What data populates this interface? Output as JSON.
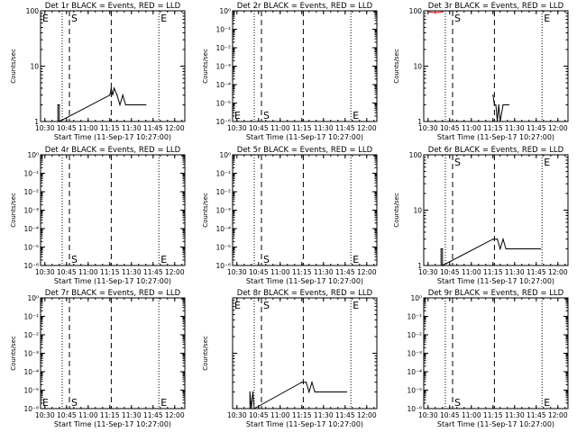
{
  "figure": {
    "background": "#ffffff",
    "axis_color": "#000000",
    "lld_color": "#ff0000"
  },
  "chart_data": [
    {
      "type": "line",
      "title": "Det 1r  BLACK = Events, RED = LLD",
      "xlabel": "Start Time (11-Sep-17 10:27:00)",
      "ylabel": "Counts/sec",
      "ylim": [
        1,
        100
      ],
      "yscale": "log",
      "ytick_labels": [
        "1",
        "10",
        "100"
      ],
      "xtick_labels": [
        "10:30",
        "10:45",
        "11:00",
        "11:15",
        "11:30",
        "11:45",
        "12:00"
      ],
      "dotted_lines": [
        "10:42",
        "11:49"
      ],
      "dashed_lines": [
        "10:47",
        "11:16"
      ],
      "markers": [
        {
          "text": "S",
          "at": "10:47",
          "pos": "top"
        },
        {
          "text": "E",
          "at": "11:49",
          "pos": "top"
        },
        {
          "text": "E",
          "at": "10:27",
          "pos": "top"
        }
      ],
      "series": [
        {
          "color": "#000000",
          "x": [
            "10:39",
            "10:39",
            "10:40",
            "10:40",
            "11:15",
            "11:16",
            "11:17",
            "11:18",
            "11:20",
            "11:22",
            "11:24",
            "11:26",
            "11:28",
            "11:30",
            "11:32",
            "11:34",
            "11:36",
            "11:38",
            "11:40"
          ],
          "y": [
            1,
            2,
            2,
            1,
            3,
            4,
            3,
            4,
            3,
            2,
            3,
            2,
            2,
            2,
            2,
            2,
            2,
            2,
            2
          ]
        }
      ]
    },
    {
      "type": "line",
      "title": "Det 2r  BLACK = Events, RED = LLD",
      "xlabel": "Start Time (11-Sep-17 10:27:00)",
      "ylabel": "Counts/sec",
      "ylim": [
        1e-06,
        1
      ],
      "yscale": "log",
      "ytick_labels": [
        "10⁻⁶",
        "10⁻⁵",
        "10⁻⁴",
        "10⁻³",
        "10⁻²",
        "10⁻¹",
        "10⁰"
      ],
      "xtick_labels": [
        "10:30",
        "10:45",
        "11:00",
        "11:15",
        "11:30",
        "11:45",
        "12:00"
      ],
      "dotted_lines": [
        "10:42",
        "11:49"
      ],
      "dashed_lines": [
        "10:47",
        "11:16"
      ],
      "markers": [
        {
          "text": "S",
          "at": "10:47",
          "pos": "bottom"
        },
        {
          "text": "E",
          "at": "11:49",
          "pos": "bottom"
        },
        {
          "text": "E",
          "at": "10:27",
          "pos": "bottom"
        }
      ],
      "series": []
    },
    {
      "type": "line",
      "title": "Det 3r  BLACK = Events, RED = LLD",
      "xlabel": "Start Time (11-Sep-17 10:27:00)",
      "ylabel": "Counts/sec",
      "ylim": [
        1,
        100
      ],
      "yscale": "log",
      "ytick_labels": [
        "1",
        "10",
        "100"
      ],
      "xtick_labels": [
        "10:30",
        "10:45",
        "11:00",
        "11:15",
        "11:30",
        "11:45",
        "12:00"
      ],
      "dotted_lines": [
        "10:42",
        "11:49"
      ],
      "dashed_lines": [
        "10:47",
        "11:16"
      ],
      "markers": [
        {
          "text": "S",
          "at": "10:47",
          "pos": "top"
        },
        {
          "text": "E",
          "at": "11:49",
          "pos": "top"
        }
      ],
      "series": [
        {
          "color": "#000000",
          "x": [
            "11:15",
            "11:16",
            "11:17",
            "11:18",
            "11:19",
            "11:20",
            "11:22",
            "11:24",
            "11:26"
          ],
          "y": [
            3,
            2,
            2,
            1,
            2,
            1,
            2,
            2,
            2
          ]
        },
        {
          "color": "#ff0000",
          "x": [
            "10:31",
            "10:35",
            "10:40"
          ],
          "y": [
            95,
            92,
            96
          ]
        }
      ]
    },
    {
      "type": "line",
      "title": "Det 4r  BLACK = Events, RED = LLD",
      "xlabel": "Start Time (11-Sep-17 10:27:00)",
      "ylabel": "Counts/sec",
      "ylim": [
        1e-06,
        1
      ],
      "yscale": "log",
      "ytick_labels": [
        "10⁻⁶",
        "10⁻⁵",
        "10⁻⁴",
        "10⁻³",
        "10⁻²",
        "10⁻¹",
        "10⁰"
      ],
      "xtick_labels": [
        "10:30",
        "10:45",
        "11:00",
        "11:15",
        "11:30",
        "11:45",
        "12:00"
      ],
      "dotted_lines": [
        "10:42",
        "11:49"
      ],
      "dashed_lines": [
        "10:47",
        "11:16"
      ],
      "markers": [
        {
          "text": "S",
          "at": "10:47",
          "pos": "bottom"
        },
        {
          "text": "E",
          "at": "11:49",
          "pos": "bottom"
        }
      ],
      "series": []
    },
    {
      "type": "line",
      "title": "Det 5r  BLACK = Events, RED = LLD",
      "xlabel": "Start Time (11-Sep-17 10:27:00)",
      "ylabel": "Counts/sec",
      "ylim": [
        1e-06,
        1
      ],
      "yscale": "log",
      "ytick_labels": [
        "10⁻⁶",
        "10⁻⁵",
        "10⁻⁴",
        "10⁻³",
        "10⁻²",
        "10⁻¹",
        "10⁰"
      ],
      "xtick_labels": [
        "10:30",
        "10:45",
        "11:00",
        "11:15",
        "11:30",
        "11:45",
        "12:00"
      ],
      "dotted_lines": [
        "10:42",
        "11:49"
      ],
      "dashed_lines": [
        "10:47",
        "11:16"
      ],
      "markers": [
        {
          "text": "S",
          "at": "10:47",
          "pos": "bottom"
        },
        {
          "text": "E",
          "at": "11:49",
          "pos": "bottom"
        }
      ],
      "series": []
    },
    {
      "type": "line",
      "title": "Det 6r  BLACK = Events, RED = LLD",
      "xlabel": "Start Time (11-Sep-17 10:27:00)",
      "ylabel": "Counts/sec",
      "ylim": [
        1,
        100
      ],
      "yscale": "log",
      "ytick_labels": [
        "1",
        "10",
        "100"
      ],
      "xtick_labels": [
        "10:30",
        "10:45",
        "11:00",
        "11:15",
        "11:30",
        "11:45",
        "12:00"
      ],
      "dotted_lines": [
        "10:42",
        "11:49"
      ],
      "dashed_lines": [
        "10:47",
        "11:16"
      ],
      "markers": [
        {
          "text": "S",
          "at": "10:47",
          "pos": "top"
        },
        {
          "text": "E",
          "at": "11:49",
          "pos": "top"
        }
      ],
      "series": [
        {
          "color": "#000000",
          "x": [
            "10:39",
            "10:39",
            "10:40",
            "10:40",
            "11:15",
            "11:16",
            "11:18",
            "11:20",
            "11:22",
            "11:24",
            "11:26",
            "11:28",
            "11:30",
            "11:32",
            "11:34",
            "11:36",
            "11:38",
            "11:40",
            "11:42",
            "11:44",
            "11:46",
            "11:48"
          ],
          "y": [
            1,
            2,
            2,
            1,
            3,
            3,
            3,
            2,
            3,
            2,
            2,
            2,
            2,
            2,
            2,
            2,
            2,
            2,
            2,
            2,
            2,
            2
          ]
        }
      ]
    },
    {
      "type": "line",
      "title": "Det 7r  BLACK = Events, RED = LLD",
      "xlabel": "Start Time (11-Sep-17 10:27:00)",
      "ylabel": "Counts/sec",
      "ylim": [
        1e-06,
        1
      ],
      "yscale": "log",
      "ytick_labels": [
        "10⁻⁶",
        "10⁻⁵",
        "10⁻⁴",
        "10⁻³",
        "10⁻²",
        "10⁻¹",
        "10⁰"
      ],
      "xtick_labels": [
        "10:30",
        "10:45",
        "11:00",
        "11:15",
        "11:30",
        "11:45",
        "12:00"
      ],
      "dotted_lines": [
        "10:42",
        "11:49"
      ],
      "dashed_lines": [
        "10:47",
        "11:16"
      ],
      "markers": [
        {
          "text": "S",
          "at": "10:47",
          "pos": "bottom"
        },
        {
          "text": "E",
          "at": "11:49",
          "pos": "bottom"
        },
        {
          "text": "E",
          "at": "10:27",
          "pos": "bottom"
        }
      ],
      "series": []
    },
    {
      "type": "line",
      "title": "Det 8r  BLACK = Events, RED = LLD",
      "xlabel": "Start Time (11-Sep-17 10:27:00)",
      "ylabel": "Counts/sec",
      "ylim": [
        1,
        100
      ],
      "yscale": "log",
      "ytick_labels": [],
      "xtick_labels": [
        "10:30",
        "10:45",
        "11:00",
        "11:15",
        "11:30",
        "11:45",
        "12:00"
      ],
      "dotted_lines": [
        "10:42",
        "11:49"
      ],
      "dashed_lines": [
        "10:47",
        "11:16"
      ],
      "markers": [
        {
          "text": "S",
          "at": "10:47",
          "pos": "top"
        },
        {
          "text": "E",
          "at": "11:49",
          "pos": "top"
        },
        {
          "text": "E",
          "at": "10:27",
          "pos": "top"
        }
      ],
      "series": [
        {
          "color": "#000000",
          "x": [
            "10:39",
            "10:39",
            "10:40",
            "10:41",
            "10:42",
            "10:42",
            "11:15",
            "11:16",
            "11:18",
            "11:20",
            "11:22",
            "11:24",
            "11:26",
            "11:28",
            "11:30",
            "11:32",
            "11:34",
            "11:36",
            "11:38",
            "11:40",
            "11:42",
            "11:44",
            "11:46"
          ],
          "y": [
            1,
            2,
            1,
            2,
            1,
            1,
            3,
            3,
            3,
            2,
            3,
            2,
            2,
            2,
            2,
            2,
            2,
            2,
            2,
            2,
            2,
            2,
            2
          ]
        }
      ]
    },
    {
      "type": "line",
      "title": "Det 9r  BLACK = Events, RED = LLD",
      "xlabel": "Start Time (11-Sep-17 10:27:00)",
      "ylabel": "",
      "ylim": [
        1e-06,
        1
      ],
      "yscale": "log",
      "ytick_labels": [
        "10⁻⁶",
        "10⁻⁵",
        "10⁻⁴",
        "10⁻³",
        "10⁻²",
        "10⁻¹",
        "10⁰"
      ],
      "xtick_labels": [
        "10:30",
        "10:45",
        "11:00",
        "11:15",
        "11:30",
        "11:45",
        "12:00"
      ],
      "dotted_lines": [
        "10:42",
        "11:49"
      ],
      "dashed_lines": [
        "10:47",
        "11:16"
      ],
      "markers": [
        {
          "text": "S",
          "at": "10:47",
          "pos": "bottom"
        },
        {
          "text": "E",
          "at": "11:49",
          "pos": "bottom"
        }
      ],
      "series": []
    }
  ]
}
